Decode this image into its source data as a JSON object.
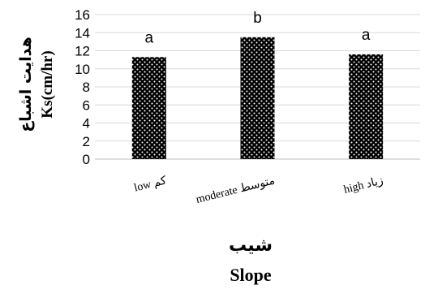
{
  "chart_data": {
    "type": "bar",
    "categories": [
      "low کم",
      "moderate متوسط",
      "high زیاد"
    ],
    "values": [
      11.3,
      13.5,
      11.6
    ],
    "significance_letters": [
      "a",
      "b",
      "a"
    ],
    "ylim": [
      0,
      16
    ],
    "yticks": [
      0,
      2,
      4,
      6,
      8,
      10,
      12,
      14,
      16
    ],
    "ylabel_fa": "هدایت اشباع",
    "ylabel_en": "Ks(cm/hr)",
    "xlabel_fa": "شیب",
    "xlabel_en": "Slope",
    "grid": true,
    "bar_fill": "dotted",
    "bar_color": "#000000",
    "dot_color": "#ffffff",
    "grid_color": "#d9d9d9"
  }
}
